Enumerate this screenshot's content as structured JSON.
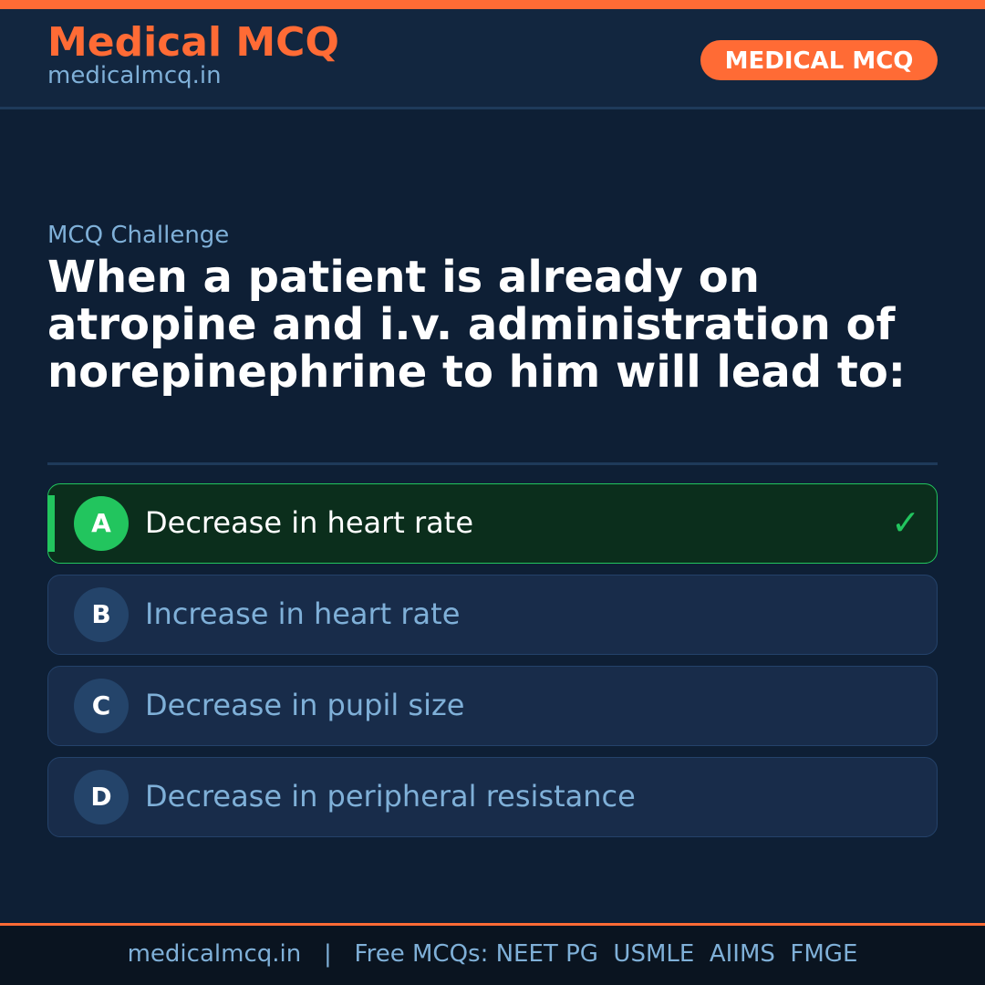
{
  "header": {
    "brand": "Medical MCQ",
    "url": "medicalmcq.in",
    "badge": "MEDICAL MCQ"
  },
  "quiz": {
    "kicker": "MCQ Challenge",
    "question": "When a patient is already on atropine and i.v. administration of norepinephrine to him will lead to:",
    "options": [
      {
        "letter": "A",
        "text": "Decrease in heart rate",
        "correct": true
      },
      {
        "letter": "B",
        "text": "Increase in heart rate",
        "correct": false
      },
      {
        "letter": "C",
        "text": "Decrease in pupil size",
        "correct": false
      },
      {
        "letter": "D",
        "text": "Decrease in peripheral resistance",
        "correct": false
      }
    ],
    "check_icon": "checkmark-icon"
  },
  "footer": {
    "text": "medicalmcq.in   |   Free MCQs: NEET PG  USMLE  AIIMS  FMGE"
  },
  "colors": {
    "accent": "#ff6b35",
    "correct": "#22c55e",
    "background": "#0e1f35"
  }
}
